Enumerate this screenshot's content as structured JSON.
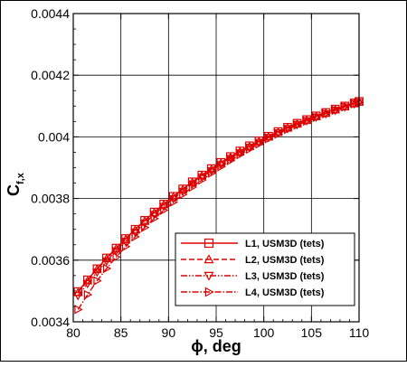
{
  "chart_data": {
    "type": "line",
    "title": "",
    "xlabel": "ϕ, deg",
    "ylabel_main": "C",
    "ylabel_sub": "f,x",
    "xlim": [
      80,
      110
    ],
    "ylim": [
      0.0034,
      0.0044
    ],
    "x_ticks": [
      80,
      85,
      90,
      95,
      100,
      105,
      110
    ],
    "x_tick_labels": [
      "80",
      "85",
      "90",
      "95",
      "100",
      "105",
      "110"
    ],
    "y_ticks": [
      0.0034,
      0.0036,
      0.0038,
      0.004,
      0.0042,
      0.0044
    ],
    "y_tick_labels": [
      "0.0034",
      "0.0036",
      "0.0038",
      "0.004",
      "0.0042",
      "0.0044"
    ],
    "grid": true,
    "legend_position": "bottom-right",
    "color": "#dd0000",
    "x": [
      80.5,
      81.5,
      82.5,
      83.5,
      84.5,
      85.5,
      86.5,
      87.5,
      88.5,
      89.5,
      90.5,
      91.5,
      92.5,
      93.5,
      94.5,
      95.5,
      96.5,
      97.5,
      98.5,
      99.5,
      100.5,
      101.5,
      102.5,
      103.5,
      104.5,
      105.5,
      106.5,
      107.5,
      108.5,
      109.5,
      110
    ],
    "series": [
      {
        "name": "L1, USM3D (tets)",
        "marker": "square",
        "line": "solid",
        "values": [
          0.003498,
          0.003536,
          0.003572,
          0.003607,
          0.003639,
          0.00367,
          0.0037,
          0.003729,
          0.003756,
          0.003782,
          0.003807,
          0.003831,
          0.003854,
          0.003876,
          0.003897,
          0.003917,
          0.003936,
          0.003954,
          0.003971,
          0.003987,
          0.004002,
          0.004017,
          0.004031,
          0.004044,
          0.004056,
          0.004068,
          0.004079,
          0.00409,
          0.0041,
          0.00411,
          0.004115
        ]
      },
      {
        "name": "L2, USM3D (tets)",
        "marker": "triangle-up",
        "line": "dashed",
        "values": [
          0.003495,
          0.003533,
          0.00357,
          0.003605,
          0.003637,
          0.003668,
          0.003698,
          0.003727,
          0.003754,
          0.00378,
          0.003805,
          0.003829,
          0.003852,
          0.003874,
          0.003895,
          0.003915,
          0.003934,
          0.003952,
          0.003969,
          0.003985,
          0.004,
          0.004015,
          0.004029,
          0.004042,
          0.004054,
          0.004066,
          0.004077,
          0.004088,
          0.004098,
          0.004108,
          0.004113
        ]
      },
      {
        "name": "L3, USM3D (tets)",
        "marker": "triangle-down",
        "line": "dash-dot-dot",
        "values": [
          0.003485,
          0.003524,
          0.003561,
          0.003597,
          0.00363,
          0.003661,
          0.003691,
          0.00372,
          0.003748,
          0.003774,
          0.003799,
          0.003823,
          0.003847,
          0.003869,
          0.00389,
          0.00391,
          0.00393,
          0.003948,
          0.003966,
          0.003982,
          0.003998,
          0.004013,
          0.004027,
          0.00404,
          0.004052,
          0.004064,
          0.004075,
          0.004086,
          0.004097,
          0.004107,
          0.004112
        ]
      },
      {
        "name": "L4, USM3D (tets)",
        "marker": "triangle-right",
        "line": "dash-dot",
        "values": [
          0.00344,
          0.003488,
          0.003533,
          0.003573,
          0.00361,
          0.003644,
          0.003676,
          0.003706,
          0.003735,
          0.003762,
          0.003788,
          0.003813,
          0.003837,
          0.00386,
          0.003882,
          0.003903,
          0.003923,
          0.003942,
          0.00396,
          0.003977,
          0.003994,
          0.004009,
          0.004024,
          0.004038,
          0.004051,
          0.004063,
          0.004075,
          0.004086,
          0.004097,
          0.004107,
          0.004112
        ]
      }
    ]
  }
}
